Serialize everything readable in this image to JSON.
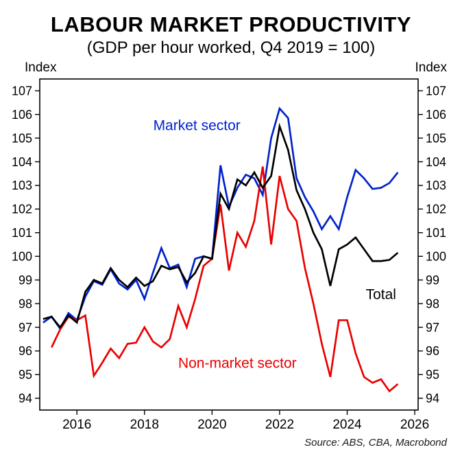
{
  "chart_data": {
    "type": "line",
    "title": "LABOUR MARKET PRODUCTIVITY",
    "subtitle": "(GDP per hour worked, Q4 2019 = 100)",
    "ylabel_left": "Index",
    "ylabel_right": "Index",
    "source": "Source: ABS, CBA, Macrobond",
    "xlim": [
      2014.9,
      2026.1
    ],
    "ylim": [
      93.5,
      107.5
    ],
    "x_ticks": [
      2016,
      2018,
      2020,
      2022,
      2024,
      2026
    ],
    "y_ticks": [
      94,
      95,
      96,
      97,
      98,
      99,
      100,
      101,
      102,
      103,
      104,
      105,
      106,
      107
    ],
    "grid": false,
    "legend": "inline-annotations",
    "x": [
      2015.0,
      2015.25,
      2015.5,
      2015.75,
      2016.0,
      2016.25,
      2016.5,
      2016.75,
      2017.0,
      2017.25,
      2017.5,
      2017.75,
      2018.0,
      2018.25,
      2018.5,
      2018.75,
      2019.0,
      2019.25,
      2019.5,
      2019.75,
      2020.0,
      2020.25,
      2020.5,
      2020.75,
      2021.0,
      2021.25,
      2021.5,
      2021.75,
      2022.0,
      2022.25,
      2022.5,
      2022.75,
      2023.0,
      2023.25,
      2023.5,
      2023.75,
      2024.0,
      2024.25,
      2024.5,
      2024.75,
      2025.0,
      2025.25,
      2025.5
    ],
    "series": [
      {
        "name": "Market sector",
        "color": "#0022cc",
        "values": [
          97.2,
          97.45,
          96.95,
          97.6,
          97.3,
          98.3,
          98.95,
          98.8,
          99.45,
          98.85,
          98.6,
          99.0,
          98.2,
          99.3,
          100.35,
          99.5,
          99.65,
          98.7,
          99.9,
          100.0,
          99.9,
          103.85,
          102.1,
          102.9,
          103.45,
          103.3,
          102.6,
          105.0,
          106.25,
          105.85,
          103.3,
          102.5,
          101.9,
          101.15,
          101.7,
          101.15,
          102.5,
          103.65,
          103.3,
          102.85,
          102.9,
          103.1,
          103.55
        ]
      },
      {
        "name": "Non-market sector",
        "color": "#ea0000",
        "values": [
          null,
          96.15,
          96.9,
          97.45,
          97.3,
          97.5,
          94.95,
          95.5,
          96.1,
          95.7,
          96.3,
          96.35,
          97.0,
          96.4,
          96.15,
          96.5,
          97.9,
          97.0,
          98.2,
          99.6,
          99.9,
          102.2,
          99.4,
          101.0,
          100.4,
          101.5,
          103.8,
          100.5,
          103.4,
          102.0,
          101.5,
          99.5,
          98.0,
          96.3,
          94.9,
          97.3,
          97.3,
          95.9,
          94.9,
          94.65,
          94.8,
          94.3,
          94.6
        ]
      },
      {
        "name": "Total",
        "color": "#000000",
        "values": [
          97.35,
          97.45,
          97.0,
          97.5,
          97.2,
          98.5,
          99.0,
          98.85,
          99.5,
          99.0,
          98.7,
          99.1,
          98.75,
          98.95,
          99.6,
          99.45,
          99.55,
          98.9,
          99.3,
          100.0,
          99.9,
          102.65,
          102.0,
          103.25,
          103.0,
          103.55,
          102.9,
          103.4,
          105.5,
          104.5,
          102.8,
          102.0,
          101.0,
          100.3,
          98.75,
          100.3,
          100.5,
          100.8,
          100.3,
          99.8,
          99.8,
          99.85,
          100.15
        ]
      }
    ],
    "annotations": [
      {
        "text": "Market sector",
        "x": 2019.55,
        "y": 105.55,
        "color": "#0022cc"
      },
      {
        "text": "Non-market sector",
        "x": 2020.75,
        "y": 95.5,
        "color": "#ea0000"
      },
      {
        "text": "Total",
        "x": 2025.0,
        "y": 98.4,
        "color": "#000000"
      }
    ]
  }
}
